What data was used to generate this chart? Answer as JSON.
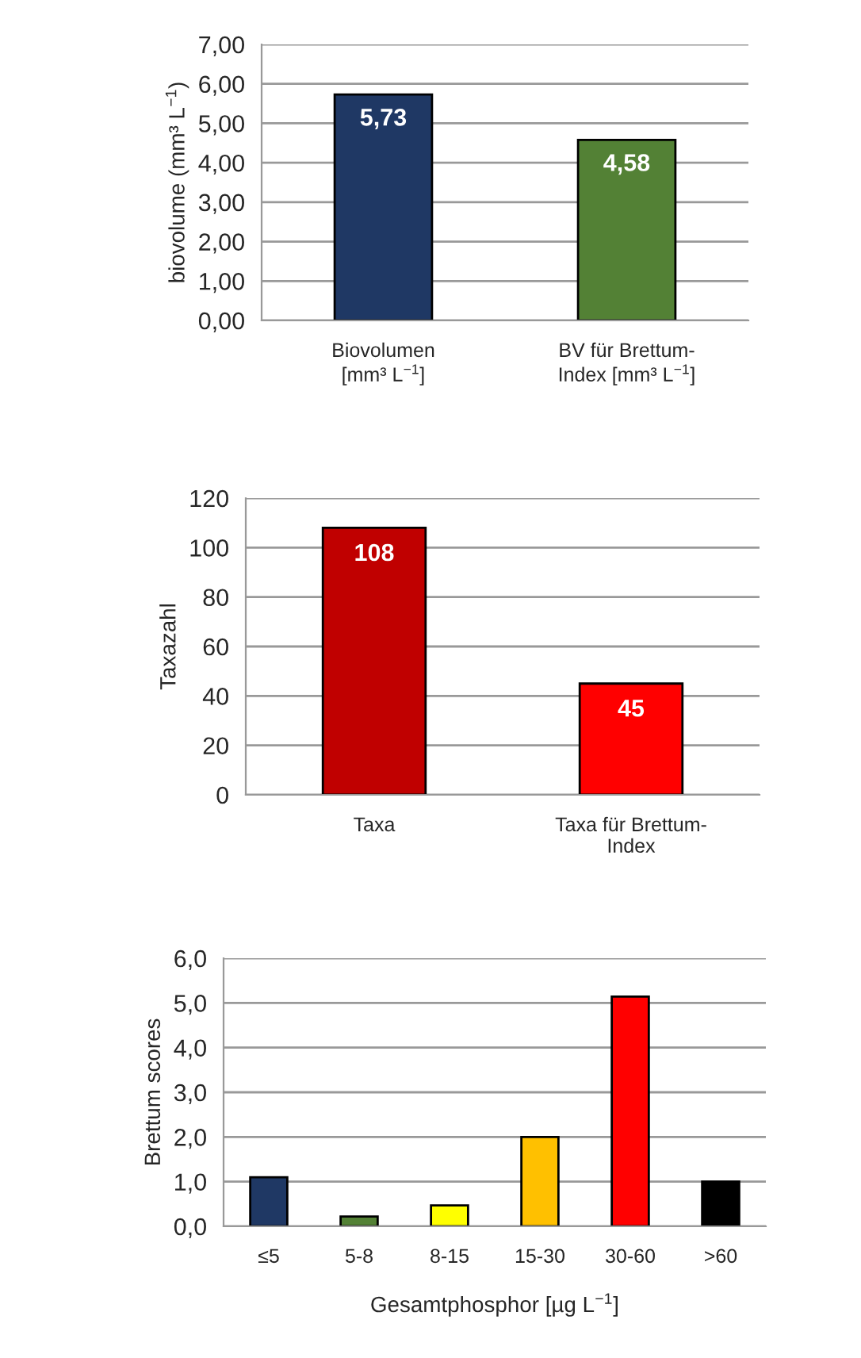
{
  "chart_data": [
    {
      "type": "bar",
      "ylabel": "biovolume (mm³ L$^{−1}$)",
      "categories": [
        "Biovolumen\n[mm³ L$^{−1}$]",
        "BV für Brettum-\nIndex [mm³ L$^{−1}$]"
      ],
      "values": [
        5.73,
        4.58
      ],
      "colors": [
        "#1f3864",
        "#538135"
      ],
      "value_labels": [
        "5,73",
        "4,58"
      ],
      "ylim": [
        0,
        7
      ],
      "yticks": [
        {
          "value": 0,
          "label": "0,00"
        },
        {
          "value": 1,
          "label": "1,00"
        },
        {
          "value": 2,
          "label": "2,00"
        },
        {
          "value": 3,
          "label": "3,00"
        },
        {
          "value": 4,
          "label": "4,00"
        },
        {
          "value": 5,
          "label": "5,00"
        },
        {
          "value": 6,
          "label": "6,00"
        },
        {
          "value": 7,
          "label": "7,00"
        }
      ],
      "grid": "y"
    },
    {
      "type": "bar",
      "ylabel": "Taxazahl",
      "categories": [
        "Taxa",
        "Taxa für Brettum-\nIndex"
      ],
      "values": [
        108,
        45
      ],
      "colors": [
        "#c00000",
        "#ff0000"
      ],
      "data_labels": true,
      "ylim": [
        0,
        120
      ],
      "yticks": [
        0,
        20,
        40,
        60,
        80,
        100,
        120
      ],
      "grid": "y"
    },
    {
      "type": "bar",
      "ylabel": "Brettum scores",
      "xlabel": "Gesamtphosphor [µg L$^{−1}$]",
      "categories": [
        "≤5",
        "5-8",
        "8-15",
        "15-30",
        "30-60",
        ">60"
      ],
      "values": [
        1.1,
        0.22,
        0.47,
        2.0,
        5.14,
        1.0
      ],
      "colors": [
        "#1f3864",
        "#538135",
        "#ffff00",
        "#ffc000",
        "#ff0000",
        "#000000"
      ],
      "ylim": [
        0,
        6
      ],
      "yticks": [
        {
          "value": 0,
          "label": "0,0"
        },
        {
          "value": 1,
          "label": "1,0"
        },
        {
          "value": 2,
          "label": "2,0"
        },
        {
          "value": 3,
          "label": "3,0"
        },
        {
          "value": 4,
          "label": "4,0"
        },
        {
          "value": 5,
          "label": "5,0"
        },
        {
          "value": 6,
          "label": "6,0"
        }
      ],
      "grid": "y"
    }
  ]
}
